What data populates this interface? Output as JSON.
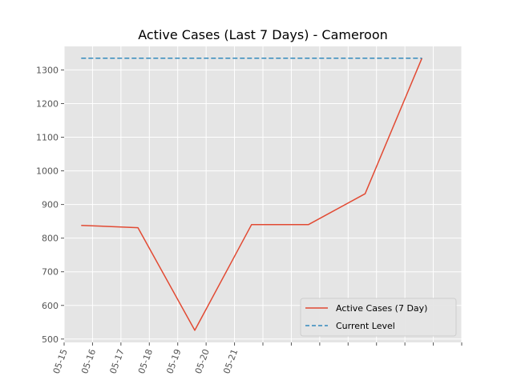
{
  "chart_data": {
    "type": "line",
    "title": "Active Cases (Last 7 Days) - Cameroon",
    "xlabel": "",
    "ylabel": "",
    "x_tick_labels": [
      "05-15",
      "05-16",
      "05-17",
      "05-18",
      "05-19",
      "05-20",
      "05-21",
      "",
      "",
      "",
      "",
      "",
      "",
      "",
      ""
    ],
    "x_ticks_units": [
      0,
      0.5,
      1,
      1.5,
      2,
      2.5,
      3,
      3.5,
      4,
      4.5,
      5,
      5.5,
      6,
      6.5,
      7
    ],
    "xlim": [
      0,
      7
    ],
    "ylim": [
      490,
      1370
    ],
    "yticks": [
      500,
      600,
      700,
      800,
      900,
      1000,
      1100,
      1200,
      1300
    ],
    "grid": true,
    "legend_position": "lower right",
    "series": [
      {
        "name": "Active Cases (7 Day)",
        "style": "solid",
        "color": "#E24A33",
        "x": [
          0.3,
          1.3,
          2.3,
          3.3,
          4.3,
          5.3,
          6.3
        ],
        "values": [
          838,
          831,
          526,
          840,
          840,
          932,
          1335
        ]
      },
      {
        "name": "Current Level",
        "style": "dashed",
        "color": "#348ABD",
        "x": [
          0.3,
          6.3
        ],
        "values": [
          1335,
          1335
        ]
      }
    ],
    "colors": {
      "plot_background": "#E5E5E5",
      "grid": "#FFFFFF",
      "tick_label": "#555555"
    }
  }
}
